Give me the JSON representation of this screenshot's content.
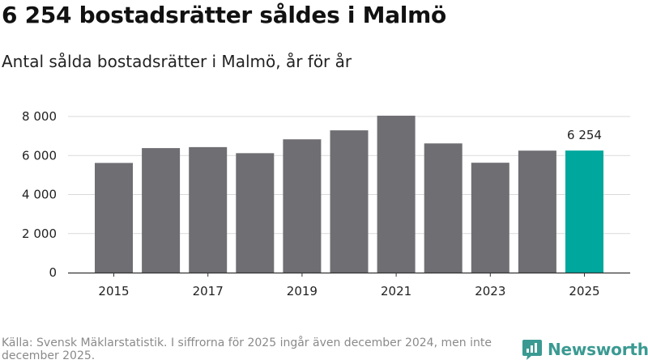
{
  "header": {
    "title": "6 254 bostadsrätter såldes i Malmö",
    "subtitle": "Antal sålda bostadsrätter i Malmö, år för år"
  },
  "footer": {
    "source": "Källa: Svensk Mäklarstatistik. I siffrorna för 2025 ingår även december 2024, men inte december 2025.",
    "brand": "Newsworthy",
    "brand_icon": "newsworthy-logo-icon"
  },
  "colors": {
    "bar": "#6f6e73",
    "highlight": "#00a79d",
    "grid": "#d9d9d9",
    "axis": "#333333",
    "brand": "#3a9a92"
  },
  "chart_data": {
    "type": "bar",
    "title": "6 254 bostadsrätter såldes i Malmö",
    "subtitle": "Antal sålda bostadsrätter i Malmö, år för år",
    "xlabel": "",
    "ylabel": "",
    "categories": [
      "2015",
      "2016",
      "2017",
      "2018",
      "2019",
      "2020",
      "2021",
      "2022",
      "2023",
      "2024",
      "2025"
    ],
    "values": [
      5620,
      6380,
      6430,
      6120,
      6830,
      7290,
      8040,
      6620,
      5630,
      6250,
      6254
    ],
    "highlight_index": 10,
    "highlight_label": "6 254",
    "x_tick_labels": [
      "2015",
      "2017",
      "2019",
      "2021",
      "2023",
      "2025"
    ],
    "y_ticks": [
      0,
      2000,
      4000,
      6000,
      8000
    ],
    "y_tick_labels": [
      "0",
      "2 000",
      "4 000",
      "6 000",
      "8 000"
    ],
    "ylim": [
      0,
      8000
    ],
    "grid": true
  }
}
